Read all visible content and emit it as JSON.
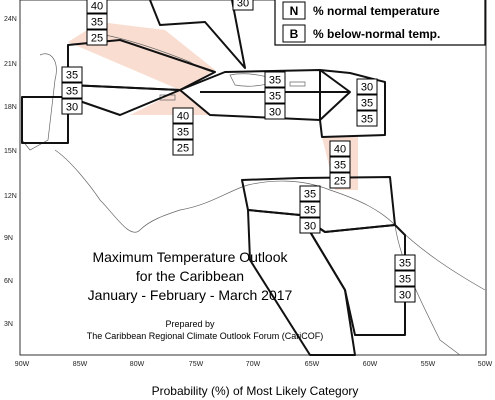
{
  "legend": {
    "rows": [
      {
        "key": "N",
        "label": "% normal temperature"
      },
      {
        "key": "B",
        "label": "% below-normal temp."
      }
    ]
  },
  "regions": [
    {
      "values": [
        40,
        35,
        25
      ]
    },
    {
      "values": [
        30
      ]
    },
    {
      "values": [
        35,
        35,
        30
      ]
    },
    {
      "values": [
        40,
        35,
        25
      ]
    },
    {
      "values": [
        35,
        35,
        30
      ]
    },
    {
      "values": [
        30,
        35,
        35
      ]
    },
    {
      "values": [
        40,
        35,
        25
      ]
    },
    {
      "values": [
        35,
        35,
        30
      ]
    },
    {
      "values": [
        35,
        35,
        30
      ]
    }
  ],
  "title": [
    "Maximum Temperature Outlook",
    "for the Caribbean",
    "January - February - March 2017"
  ],
  "credit": [
    "Prepared by",
    "The Caribbean Regional Climate Outlook Forum (CariCOF)"
  ],
  "lat_labels": [
    "24N",
    "21N",
    "18N",
    "15N",
    "12N",
    "9N",
    "6N",
    "3N"
  ],
  "lon_labels": [
    "90W",
    "85W",
    "80W",
    "75W",
    "70W",
    "65W",
    "60W",
    "55W",
    "50W"
  ],
  "footer": "Probability (%) of Most Likely Category"
}
